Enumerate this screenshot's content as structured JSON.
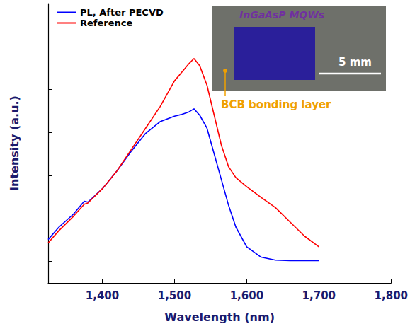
{
  "chart_data": {
    "type": "line",
    "x_label": "Wavelength (nm)",
    "y_label": "Intensity (a.u.)",
    "x": [
      1325,
      1340,
      1360,
      1375,
      1380,
      1400,
      1420,
      1440,
      1460,
      1480,
      1500,
      1510,
      1520,
      1527,
      1535,
      1545,
      1555,
      1565,
      1575,
      1585,
      1600,
      1620,
      1640,
      1660,
      1680,
      1700
    ],
    "series": [
      {
        "name": "PL, After PECVD",
        "color": "#0000ff",
        "values": [
          0.51,
          0.8,
          1.1,
          1.4,
          1.38,
          1.69,
          2.1,
          2.56,
          2.98,
          3.25,
          3.38,
          3.42,
          3.48,
          3.55,
          3.4,
          3.1,
          2.5,
          1.9,
          1.3,
          0.8,
          0.34,
          0.1,
          0.03,
          0.02,
          0.02,
          0.02
        ]
      },
      {
        "name": "Reference",
        "color": "#ff0000",
        "values": [
          0.43,
          0.72,
          1.05,
          1.33,
          1.36,
          1.69,
          2.1,
          2.6,
          3.1,
          3.6,
          4.2,
          4.4,
          4.6,
          4.72,
          4.55,
          4.1,
          3.4,
          2.7,
          2.2,
          1.95,
          1.74,
          1.49,
          1.25,
          0.92,
          0.59,
          0.34
        ]
      }
    ],
    "xlim": [
      1325,
      1800
    ],
    "xticks": [
      1400,
      1500,
      1600,
      1700,
      1800
    ],
    "ylim": [
      -0.5,
      6
    ],
    "yticks": [
      0,
      1,
      2,
      3,
      4,
      5,
      6
    ],
    "tick_labels": "x",
    "legend": "upper left",
    "grid": false,
    "annotations": [
      {
        "text": "InGaAsP MQWs",
        "color": "#7030a0"
      },
      {
        "text": "5 mm",
        "color": "#ffffff"
      },
      {
        "text": "BCB bonding layer",
        "color": "#f0a000"
      }
    ]
  }
}
